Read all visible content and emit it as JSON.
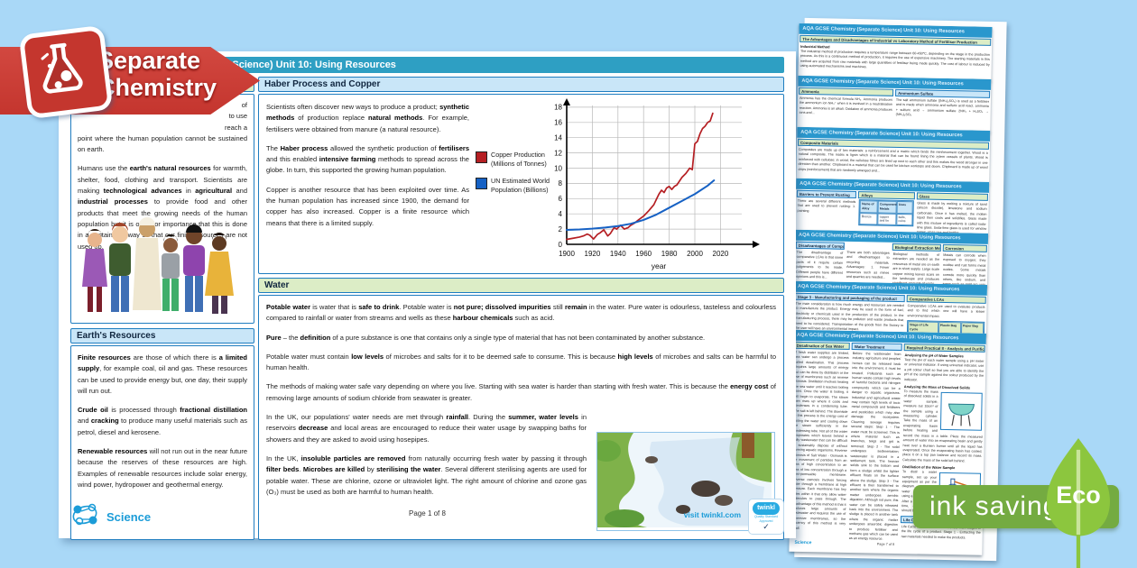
{
  "badge": {
    "line1": "Separate",
    "line2": "Chemistry"
  },
  "main_page": {
    "title": "AQA GCSE Chemistry (Separate Science) Unit 10: Using Resources",
    "intro": {
      "frag1": "of",
      "frag2": "to use",
      "frag3": "reach a",
      "frag4": "point where the human population cannot be sustained on earth.",
      "para2": "Humans use the <b>earth's natural resources</b> for warmth, shelter, food, clothing and transport. Scientists are making <b>technological advances</b> in <b>agricultural</b> and <b>industrial processes</b> to provide food and other products that meet the growing needs of the human population but it is of major importance that this is done in a sustainable way so that our finite resources are not used up."
    },
    "earths": {
      "title": "Earth's Resources",
      "p1": "<b>Finite resources</b> are those of which there is <b>a limited supply</b>, for example coal, oil and gas. These resources can be used to provide energy but, one day, their supply will run out.",
      "p2": "<b>Crude oil</b> is processed through <b>fractional distillation</b> and <b>cracking</b> to produce many useful materials such as petrol, diesel and kerosene.",
      "p3": "<b>Renewable resources</b> will not run out in the near future because the reserves of these resources are high. Examples of renewable resources include solar energy, wind power, hydropower and geothermal energy."
    },
    "haber": {
      "title": "Haber Process and Copper",
      "p1": "Scientists often discover new ways to produce a product; <b>synthetic methods</b> of production replace <b>natural methods</b>. For example, fertilisers were obtained from manure (a natural resource).",
      "p2": "The <b>Haber process</b> allowed the synthetic production of <b>fertilisers</b> and this enabled <b>intensive farming</b> methods to spread across the globe. In turn, this supported the growing human population.",
      "p3": "Copper is another resource that has been exploited over time. As the human population has increased since 1900, the demand for copper has also increased. Copper is a finite resource which means that there is a limited supply."
    },
    "legend": {
      "items": [
        {
          "label": "Copper Production (Millions of Tonnes)",
          "color": "#b51f23"
        },
        {
          "label": "UN Estimated World Population (Billions)",
          "color": "#1661c4"
        }
      ]
    },
    "water": {
      "title": "Water",
      "p1": "<b>Potable water</b> is water that is <b>safe to drink</b>. Potable water is <b>not pure; dissolved impurities</b> still <b>remain</b> in the water. Pure water is odourless, tasteless and colourless compared to rainfall or water from streams and wells as these <b>harbour chemicals</b> such as acid.",
      "p2": "<b>Pure</b> – the <b>definition</b> of a pure substance is one that contains only a single type of material that has not been contaminated by another substance.",
      "p3": "Potable water must contain <b>low levels</b> of microbes and salts for it to be deemed safe to consume. This is because <b>high levels</b> of microbes and salts can be harmful to human health.",
      "p4": "The methods of making water safe vary depending on where you live. Starting with sea water is harder than starting with fresh water. This is because the <b>energy cost</b> of removing large amounts of sodium chloride from seawater is greater.",
      "p5": "In the UK, our populations' water needs are met through <b>rainfall</b>. During the <b>summer, water levels</b> in reservoirs <b>decrease</b> and local areas are encouraged to reduce their water usage by swapping baths for showers and they are asked to avoid using hosepipes.",
      "p6": "In the UK, <b>insoluble particles are removed</b> from naturally occurring fresh water by passing it through <b>filter beds</b>. <b>Microbes are killed</b> by <b>sterilising the water</b>. Several different sterilising agents are used for potable water. These are chlorine, ozone or ultraviolet light. The right amount of chlorine and ozone gas (O₃) must be used as both are harmful to human health."
    },
    "footer": {
      "brand": "Science",
      "page": "Page 1 of 8",
      "visit": "visit twinkl.com",
      "twinkl": "twinkl",
      "quality1": "Quality Standard",
      "quality2": "Approved",
      "check": "✓"
    }
  },
  "chart_data": {
    "type": "line",
    "title": "",
    "xlabel": "year",
    "ylabel": "",
    "xlim": [
      1900,
      2035
    ],
    "ylim": [
      0,
      18
    ],
    "xticks": [
      1900,
      1920,
      1940,
      1960,
      1980,
      2000,
      2020
    ],
    "yticks": [
      0,
      2,
      4,
      6,
      8,
      10,
      12,
      14,
      16,
      18
    ],
    "grid": true,
    "legend_position": "left of plot",
    "series": [
      {
        "name": "Copper Production (Millions of Tonnes)",
        "color": "#b51f23",
        "x": [
          1900,
          1905,
          1910,
          1913,
          1916,
          1918,
          1921,
          1924,
          1926,
          1929,
          1932,
          1934,
          1937,
          1939,
          1942,
          1945,
          1948,
          1950,
          1953,
          1956,
          1960,
          1964,
          1968,
          1970,
          1972,
          1974,
          1976,
          1978,
          1980,
          1982,
          1984,
          1986,
          1988,
          1990,
          1993,
          1996,
          1998,
          2000,
          2002,
          2004,
          2006,
          2008,
          2010,
          2012,
          2014
        ],
        "y": [
          0.65,
          0.8,
          0.95,
          1.1,
          1.35,
          1.2,
          0.7,
          1.3,
          1.5,
          1.9,
          1.1,
          1.4,
          2.2,
          2.0,
          2.5,
          2.0,
          2.2,
          2.5,
          2.8,
          3.2,
          3.7,
          4.4,
          5.2,
          5.9,
          6.6,
          7.1,
          6.8,
          7.4,
          7.6,
          7.2,
          7.6,
          7.8,
          8.3,
          8.8,
          9.3,
          10.0,
          9.8,
          13.2,
          13.5,
          14.5,
          15.2,
          15.5,
          16.0,
          16.2,
          17.2
        ]
      },
      {
        "name": "UN Estimated World Population (Billions)",
        "color": "#1661c4",
        "x": [
          1900,
          1910,
          1920,
          1930,
          1940,
          1950,
          1960,
          1970,
          1980,
          1990,
          2000,
          2010,
          2015
        ],
        "y": [
          1.9,
          1.95,
          2.05,
          2.2,
          2.4,
          2.7,
          3.2,
          3.9,
          4.8,
          5.7,
          6.6,
          7.7,
          8.4
        ]
      }
    ]
  },
  "thumbs_header": "AQA GCSE Chemistry (Separate Science) Unit 10: Using Resources",
  "thumbnails": [
    {
      "s1_title": "The Advantages and Disadvantages of Industrial vs Laboratory Method of Fertiliser Production",
      "s2_title": "Industrial Method",
      "body": "The industrial method of production requires a temperature range between 60-450°C, depending on the stage in the production process. As this is a continuous method of production, it requires the use of expensive machinery. The starting materials in this method are acquired from raw materials with large quantities of fertiliser being made quickly. The cost of labour is reduced by using automated mechanisms and machines."
    },
    {
      "col1_title": "Ammonia",
      "col1_body": "Ammonia has the chemical formula NH₃. Ammonia produces the ammonium ion NH₄⁺ when it is involved in a neutralisation reaction. Ammonia is an alkali. Oxidation of ammonia produces ions and...",
      "col2_title": "Ammonium Sulfate",
      "col2_body": "The salt ammonium sulfate ((NH₄)₂SO₄) is used as a fertiliser and is made when ammonia and sulfuric acid react. ammonia + sulfuric acid → ammonium sulfate 2NH₃ + H₂SO₄ → (NH₄)₂SO₄"
    },
    {
      "s1_title": "Composite Materials",
      "body": "Composites are made up of two materials: a reinforcement and a matrix which binds the reinforcement together. Wood is a natural composite. The matrix is lignin which is a material that can be found lining the xylem vessels of plants. Wood is reinforced with cellulose; in wood, the cellulose fibres are lined up next to each other and this makes the wood stronger in one direction than another. Chipboard is a material that can be used for kitchen worktops and doors. Chipboard is made up of wood chips (reinforcement) that are randomly arranged and..."
    },
    {
      "col1_title": "Barriers to Prevent Rusting",
      "col1_body": "There are several different methods that are used to prevent rusting: 1. painting",
      "col2_title": "Alloys",
      "table_h1": "Name of Alloy",
      "table_h2": "Component Metals",
      "table_h3": "Uses",
      "table_r1": "Bronze",
      "table_r2": "copper and tin",
      "table_r3": "bells, coins",
      "col3_title": "Glass",
      "col3_body": "Glass is made by melting a mixture of sand (silicon dioxide), limestone and sodium carbonate. Once it has melted, the molten liquid then cools and solidifies. Glass made with this mixture of ingredients is called soda-lime glass. Soda-lime glass is used for window panes, glass jars and bottles."
    },
    {
      "col1_title": "Disadvantages of Comparative LCAs",
      "col1_body": "The disadvantage of comparative LCAs is that some parts of it require certain judgements to be made. Different people have different opinions and this is...",
      "col2_body": "There are both advantages and disadvantages to recycling materials. Advantages: 1. Fewer resources such as mines and quarries are needed...",
      "col3_title": "Biological Extraction Methods (Higher Tier Only)",
      "col3_body": "Biological methods of extraction are needed as the resources of metal ore on earth are in short supply. Large scale copper mining leaves scars on the landscape and produces significant amounts of waste.",
      "col4_title": "Corrosion",
      "col4_body": "Metals can corrode when exposed to oxygen; they oxidise and rust forms metal oxides. Some metals corrode more quickly than others, like sodium, and some such as gold are very unreactive and do..."
    },
    {
      "col1_title": "Stage 3 - Manufacturing and packaging of the product",
      "col1_body": "The main consideration is how much energy and resources are needed to manufacture the product. Energy may be used in the form of fuel, electricity or chemicals used in the production of the product. In the manufacturing process, there may be pollution and waste products that need to be considered. Transportation of the goods from the factory to the user will have an environmental impact.",
      "col2_title": "Comparative LCAs",
      "col2_body": "Comparative LCAs are used to evaluate products and to find which one will have a lesser environmental impact.",
      "table_h1": "Stage of Life Cycle",
      "table_h2": "Plastic Bag",
      "table_h3": "Paper Bag"
    },
    {
      "col1_title": "Desalination of Sea Water",
      "col1_body": "If fresh water supplies are limited, sea water can undergo a process called desalination. This process requires large amounts of energy but can be done by distillation or the use of membranes such as reverse osmosis. Distillation involves heating the sea water until it reaches boiling point. Once the water is boiling, it will begin to evaporate. The steam then rises up where it cools and condenses in a condensing tube. The salt is left behind. The downside to this process is the energy cost of boiling the water and cooling down the steam sufficiently in the condensing tube. Not all of the water evaporates which leaves behind a salty wastewater that can be difficult to sustainably dispose of without harming aquatic organisms. Reverse Osmosis of Salt Water - Osmosis is the movement of particles from an area of high concentration to an area of low concentration through a semi-permeable membrane. Reverse osmosis involves forcing water through a membrane at high pressure. Each membrane has tiny holes within it that only allow water molecules to pass through. The disadvantage of this method is that it produces large amounts of wastewater and requires the use of expensive membranes, so the efficiency of this method is very small.",
      "col2_title": "Water Treatment",
      "col2_body": "Before the wastewater from industry, agriculture and peoples' homes can be released back into the environment, it must be treated. Pollutants such as human waste contain high levels of harmful bacteria and nitrogen compounds which can be a danger to aquatic organisms. Industrial and agricultural waste may contain high levels of toxic metal compounds and fertilisers and pesticides which may also damage the ecosystem. Cleaning sewage requires several steps: Step 1 - The water must be screened. This is where material such as branches, twigs and grit is removed. Step 2 - The solid undergoes sedimentation; wastewater is placed in a settlement tank. The heavier solids sink to the bottom and form a sludge whilst the lighter effluent floats on the surface above the sludge. Step 3 - The effluent is then transferred to another tank where the organic matter undergoes aerobic digestion. Although not pure, this water can be safely released back into the environment. The sludge is placed in another tank where the organic matter undergoes anaerobic digestion to produce fertiliser and methane gas which can be used as an energy resource.",
      "col3_title": "Required Practical 8 - Analysis and Purification of Water Samples from Different Sources",
      "rp_s1": "Analysing the pH of Water Samples",
      "rp_b1": "Test the pH of each water sample using a pH meter or universal indicator. If using universal indicator, use a pH colour chart so that you are able to identify the pH of the sample against the colour produced by the indicator.",
      "rp_s2": "Analysing the Mass of Dissolved Solids",
      "rp_b2": "To measure the mass of dissolved solids in a water sample, measure out 10cm³ of the sample using a measuring cylinder. Take the mass of an evaporating basin before heating and record the mass in a table. Place the measured amount of water into an evaporating basin and gently heat over a Bunsen burner until all the liquid has evaporated. Once the evaporating basin has cooled, place it on a top pan balance and record its mass. Calculate the mass of the solid left behind.",
      "rp_s3": "Distillation of the Water Sample",
      "rp_b3": "To distil a water sample, set up your equipment as per the diagram. Heat the water sample gently using a Bunsen burner. After a short period of time, distilled water should be produced.",
      "lca_title": "Life Cycle Assessment (LCA)",
      "lca_body": "Life Cycle Assessments follow the four main stages of the life cycle of a product. Stage 1 - Extracting the raw materials needed to make the products.",
      "footer_brand": "Science",
      "footer_page": "Page 7 of 8"
    }
  ],
  "eco": {
    "ink": "ink saving",
    "label": "Eco"
  },
  "colors": {
    "teal_header": "#2e9fc3",
    "thumb_header": "#2a97cd",
    "ribbon_red": "#ca3a33",
    "eco_banner": "#74ab41",
    "eco_leaf": "#8cc63e",
    "chart_red": "#b51f23",
    "chart_blue": "#1661c4"
  }
}
